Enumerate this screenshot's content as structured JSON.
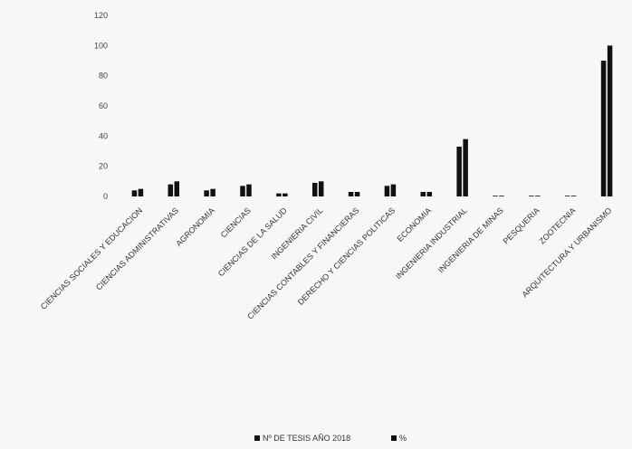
{
  "chart_data": {
    "type": "bar",
    "title": "",
    "xlabel": "",
    "ylabel": "",
    "ylim": [
      0,
      120
    ],
    "yticks": [
      0,
      20,
      40,
      60,
      80,
      100,
      120
    ],
    "grid": false,
    "legend_position": "bottom",
    "categories": [
      "CIENCIAS SOCIALES Y EDUCACION",
      "CIENCIAS ADMINISTRATIVAS",
      "AGRONOMIA",
      "CIENCIAS",
      "CIENCIAS DE LA SALUD",
      "INGENIERIA CIVIL",
      "CIENCIAS CONTABLES Y FINANCIERAS",
      "DERECHO Y CIENCIAS POLITICAS",
      "ECONOMIA",
      "INGENIERIA INDUSTRIAL",
      "INGENIERIA DE MINAS",
      "PESQUERIA",
      "ZOOTECNIA",
      "ARQUITECTURA Y URBANISMO"
    ],
    "series": [
      {
        "name": "Nº DE TESIS AÑO 2018",
        "color": "#111111",
        "values": [
          4,
          8,
          4,
          7,
          2,
          9,
          3,
          7,
          3,
          33,
          0,
          0,
          0,
          90
        ]
      },
      {
        "name": "%",
        "color": "#111111",
        "values": [
          5,
          10,
          5,
          8,
          2,
          10,
          3,
          8,
          3,
          38,
          0,
          0,
          0,
          100
        ]
      }
    ]
  }
}
